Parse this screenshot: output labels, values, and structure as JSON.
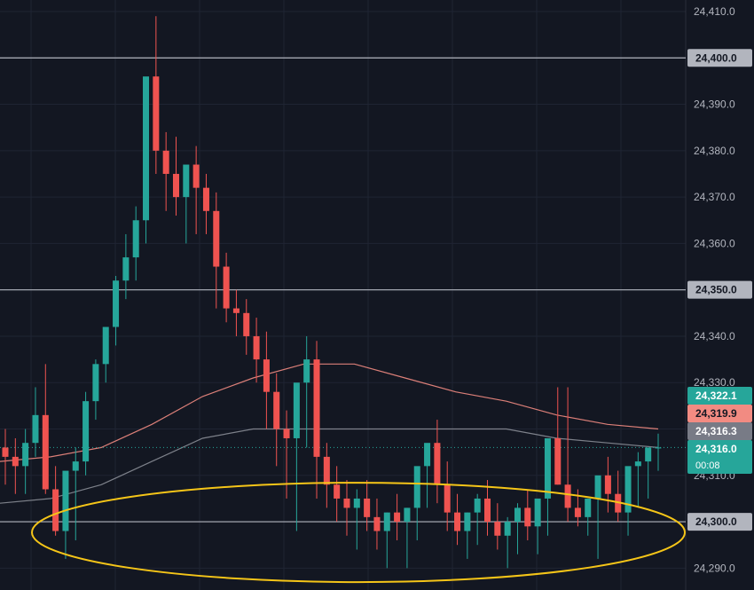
{
  "chart_data": {
    "type": "candlestick",
    "ylim": [
      24287,
      24412
    ],
    "y_ticks": [
      "24,410.0",
      "24,390.0",
      "24,380.0",
      "24,370.0",
      "24,360.0",
      "24,340.0",
      "24,330.0",
      "24,310.0",
      "24,290.0"
    ],
    "y_tick_values": [
      24410,
      24390,
      24380,
      24370,
      24360,
      24340,
      24330,
      24310,
      24290
    ],
    "grid": true,
    "horizontal_levels": [
      {
        "value": 24400,
        "label": "24,400.0"
      },
      {
        "value": 24350,
        "label": "24,350.0"
      },
      {
        "value": 24300,
        "label": "24,300.0"
      }
    ],
    "price_tags": [
      {
        "value": 24322.1,
        "label": "24,322.1",
        "color": "#26a69a"
      },
      {
        "value": 24319.9,
        "label": "24,319.9",
        "color": "#f28b82"
      },
      {
        "value": 24316.3,
        "label": "24,316.3",
        "color": "#787b86"
      },
      {
        "value": 24316.0,
        "label": "24,316.0",
        "sub": "00:08",
        "color": "#26a69a"
      }
    ],
    "moving_averages": [
      {
        "color": "#f28b82",
        "values": [
          24313,
          24314,
          24316,
          24321,
          24327,
          24331,
          24334,
          24334,
          24331,
          24328,
          24326,
          24323,
          24321,
          24320
        ]
      },
      {
        "color": "#8a8d96",
        "values": [
          24304,
          24305,
          24308,
          24313,
          24318,
          24320,
          24320,
          24320,
          24320,
          24320,
          24320,
          24318,
          24317,
          24316
        ]
      }
    ],
    "candles": {
      "open": [
        24316,
        24314,
        24312,
        24317,
        24323,
        24307,
        24298,
        24311,
        24313,
        24326,
        24334,
        24342,
        24352,
        24357,
        24365,
        24396,
        24380,
        24375,
        24370,
        24377,
        24372,
        24367,
        24355,
        24346,
        24345,
        24340,
        24335,
        24328,
        24320,
        24318,
        24330,
        24335,
        24314,
        24308,
        24305,
        24303,
        24305,
        24301,
        24298,
        24302,
        24300,
        24303,
        24312,
        24317,
        24308,
        24302,
        24298,
        24302,
        24305,
        24300,
        24297,
        24300,
        24303,
        24299,
        24305,
        24318,
        24308,
        24303,
        24301,
        24305,
        24310,
        24306,
        24302,
        24312,
        24313,
        24316
      ],
      "high": [
        24320,
        24318,
        24320,
        24329,
        24334,
        24312,
        24300,
        24316,
        24328,
        24335,
        24341,
        24353,
        24362,
        24368,
        24380,
        24409,
        24384,
        24383,
        24373,
        24381,
        24375,
        24371,
        24358,
        24350,
        24348,
        24344,
        24341,
        24332,
        24324,
        24324,
        24340,
        24339,
        24317,
        24312,
        24309,
        24307,
        24309,
        24305,
        24302,
        24306,
        24303,
        24307,
        24316,
        24322,
        24313,
        24306,
        24302,
        24306,
        24309,
        24304,
        24301,
        24304,
        24307,
        24303,
        24312,
        24329,
        24329,
        24307,
        24305,
        24309,
        24314,
        24311,
        24306,
        24315,
        24316,
        24319
      ],
      "low": [
        24308,
        24306,
        24306,
        24314,
        24306,
        24297,
        24292,
        24296,
        24310,
        24322,
        24330,
        24338,
        24348,
        24352,
        24360,
        24375,
        24367,
        24366,
        24360,
        24362,
        24362,
        24346,
        24343,
        24340,
        24336,
        24330,
        24320,
        24312,
        24305,
        24298,
        24316,
        24305,
        24303,
        24300,
        24297,
        24294,
        24298,
        24294,
        24290,
        24296,
        24290,
        24296,
        24303,
        24304,
        24298,
        24295,
        24292,
        24295,
        24297,
        24294,
        24290,
        24293,
        24296,
        24293,
        24297,
        24308,
        24300,
        24299,
        24297,
        24292,
        24302,
        24300,
        24297,
        24303,
        24305,
        24311
      ],
      "close": [
        24314,
        24312,
        24317,
        24323,
        24307,
        24298,
        24311,
        24313,
        24326,
        24334,
        24342,
        24352,
        24357,
        24365,
        24396,
        24380,
        24375,
        24370,
        24377,
        24372,
        24367,
        24355,
        24346,
        24345,
        24340,
        24335,
        24328,
        24320,
        24318,
        24330,
        24335,
        24314,
        24308,
        24305,
        24303,
        24305,
        24301,
        24298,
        24302,
        24300,
        24303,
        24312,
        24317,
        24308,
        24302,
        24298,
        24302,
        24305,
        24300,
        24297,
        24300,
        24303,
        24299,
        24305,
        24318,
        24308,
        24303,
        24301,
        24305,
        24310,
        24306,
        24302,
        24312,
        24313,
        24316,
        24316
      ]
    },
    "annotations": [
      {
        "type": "ellipse",
        "color": "#f5c518",
        "center_value": 24300
      }
    ]
  }
}
